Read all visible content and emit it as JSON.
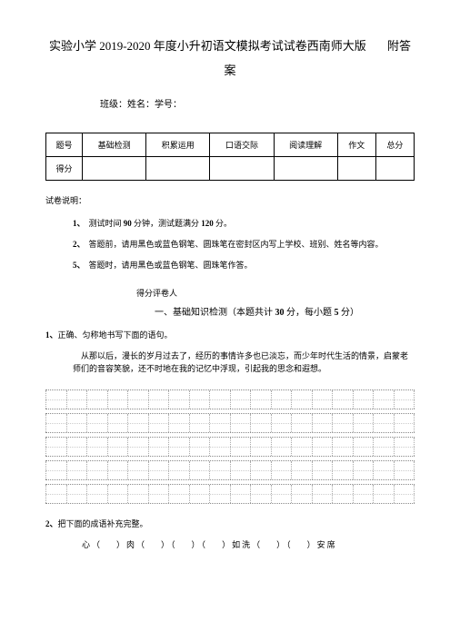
{
  "title_main": "实验小学 2019-2020 年度小升初语文模拟考试试卷西南师大版",
  "title_suffix": "附答",
  "title_line2": "案",
  "student_info": "班级：姓名：学号：",
  "table": {
    "header_row_label": "题号",
    "columns": [
      "基础检测",
      "积累运用",
      "口语交际",
      "阅读理解",
      "作文",
      "总分"
    ],
    "score_row_label": "得分"
  },
  "note_label": "试卷说明：",
  "instructions": [
    {
      "num": "1、",
      "text_before": "测试时间 ",
      "bold1": "90",
      "text_mid": " 分钟，测试题满分 ",
      "bold2": "120",
      "text_after": " 分。"
    },
    {
      "num": "2、",
      "text": "答题前，请用黑色或蓝色钢笔、圆珠笔在密封区内写上学校、班别、姓名等内容。"
    },
    {
      "num": "5、",
      "text": "答题时，请用黑色或蓝色钢笔、圆珠笔作答。"
    }
  ],
  "section_label": "得分评卷人",
  "section_title_prefix": "一、基础知识检测（本题共计 ",
  "section_title_bold1": "30",
  "section_title_mid": " 分，每小题 ",
  "section_title_bold2": "5",
  "section_title_suffix": " 分）",
  "q1_num": "1、",
  "q1_text": "正确、匀称地书写下面的语句。",
  "paragraph": "从那以后，漫长的岁月过去了，经历的事情许多也已淡忘，而少年时代生活的情景，启蒙老师们的音容笑貌，还不时地在我的记忆中浮现，引起我的思念和遐想。",
  "q2_num": "2、",
  "q2_text": "把下面的成语补充完整。",
  "idioms": {
    "char1": "心（",
    "mid1": "）肉（",
    "mid2": "）（",
    "mid3": "）（",
    "mid4": "）如洗（",
    "mid5": "）（",
    "end": "）安席"
  },
  "grid_rows": 5,
  "grid_cells_per_row": 18
}
